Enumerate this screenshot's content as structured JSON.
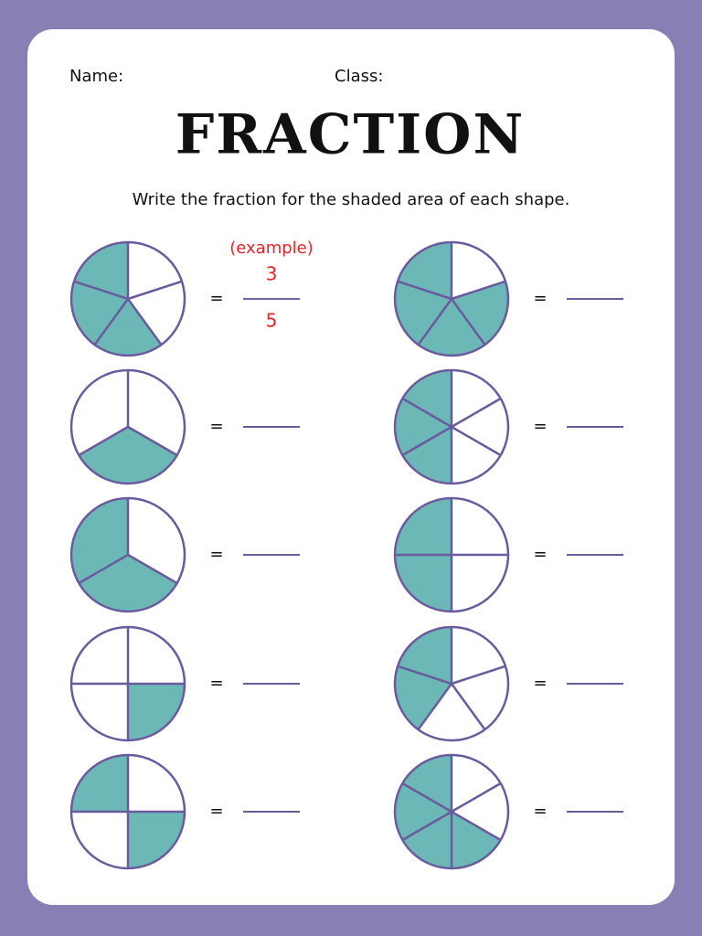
{
  "header": {
    "name_label": "Name:",
    "class_label": "Class:",
    "title": "FRACTION",
    "instruction": "Write the fraction for the shaded area of each shape."
  },
  "example": {
    "label": "(example)",
    "numerator": "3",
    "denominator": "5"
  },
  "equals_sign": "="
}
